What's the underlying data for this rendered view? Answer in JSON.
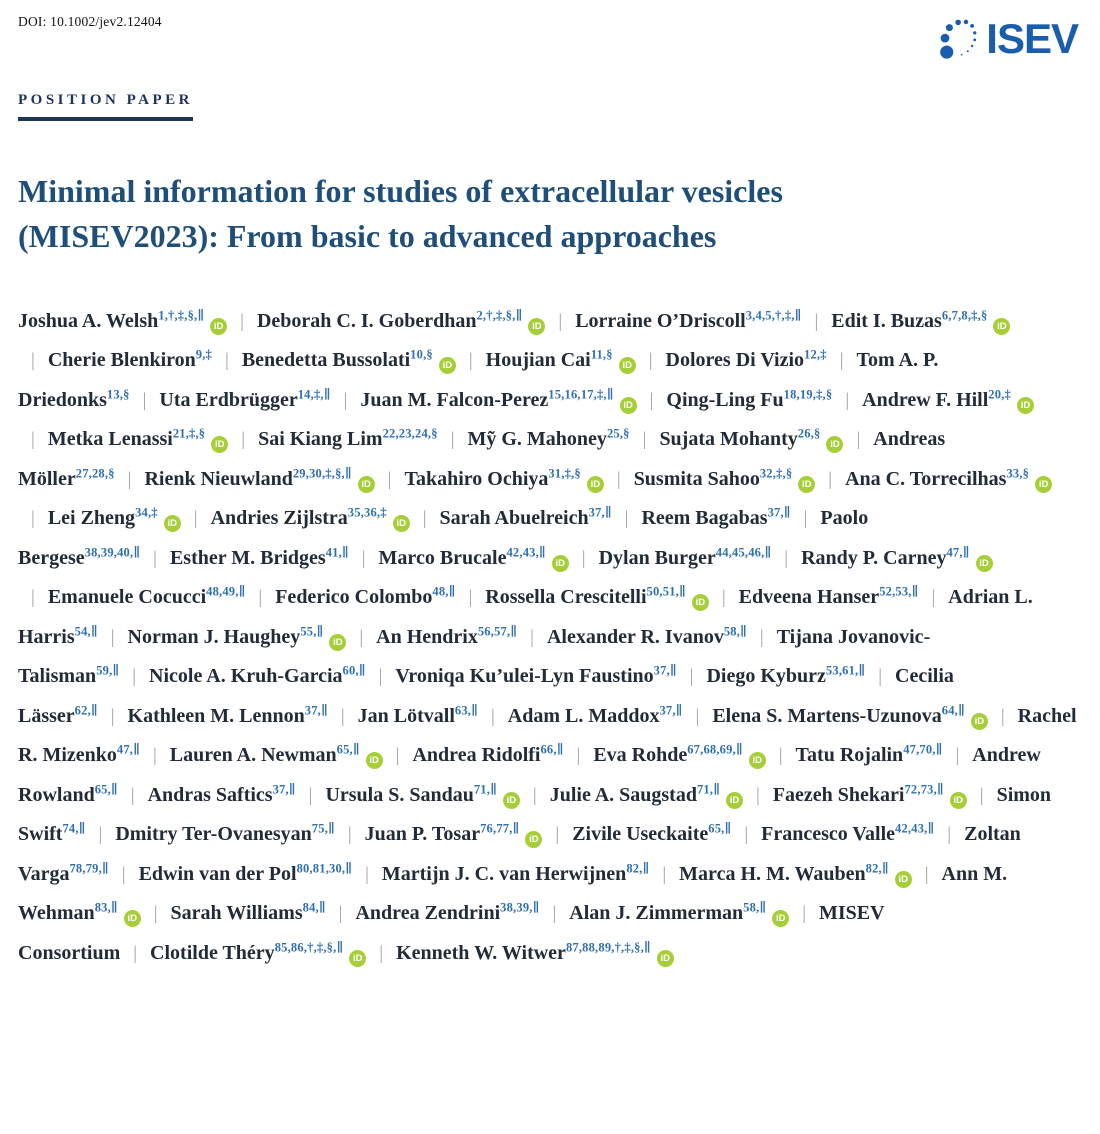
{
  "header": {
    "doi": "DOI: 10.1002/jev2.12404",
    "article_type": "POSITION PAPER",
    "logo_text": "ISEV"
  },
  "title": {
    "line1": "Minimal information for studies of extracellular vesicles",
    "line2": "(MISEV2023): From basic to advanced approaches",
    "full": "Minimal information for studies of extracellular vesicles (MISEV2023): From basic to advanced approaches"
  },
  "colors": {
    "logo_blue": "#1A5DAD",
    "title_blue": "#1F4E79",
    "article_type_navy": "#1C3557",
    "superscript_blue": "#2E6FAE",
    "orcid_green": "#A6CE39",
    "separator_gray": "#9ca3ad"
  },
  "icons": {
    "orcid_label": "iD",
    "isev_mark": "dotted-vesicle-icon"
  },
  "authors": [
    {
      "name": "Joshua A. Welsh",
      "sup": "1,†,‡,§,∥",
      "orcid": true
    },
    {
      "name": "Deborah C. I. Goberdhan",
      "sup": "2,†,‡,§,∥",
      "orcid": true
    },
    {
      "name": "Lorraine O’Driscoll",
      "sup": "3,4,5,†,‡,∥",
      "orcid": false
    },
    {
      "name": "Edit I. Buzas",
      "sup": "6,7,8,‡,§",
      "orcid": true
    },
    {
      "name": "Cherie Blenkiron",
      "sup": "9,‡",
      "orcid": false
    },
    {
      "name": "Benedetta Bussolati",
      "sup": "10,§",
      "orcid": true
    },
    {
      "name": "Houjian Cai",
      "sup": "11,§",
      "orcid": true
    },
    {
      "name": "Dolores Di Vizio",
      "sup": "12,‡",
      "orcid": false
    },
    {
      "name": "Tom A. P. Driedonks",
      "sup": "13,§",
      "orcid": false
    },
    {
      "name": "Uta Erdbrügger",
      "sup": "14,‡,∥",
      "orcid": false
    },
    {
      "name": "Juan M. Falcon-Perez",
      "sup": "15,16,17,‡,∥",
      "orcid": true
    },
    {
      "name": "Qing-Ling Fu",
      "sup": "18,19,‡,§",
      "orcid": false
    },
    {
      "name": "Andrew F. Hill",
      "sup": "20,‡",
      "orcid": true
    },
    {
      "name": "Metka Lenassi",
      "sup": "21,‡,§",
      "orcid": true
    },
    {
      "name": "Sai Kiang Lim",
      "sup": "22,23,24,§",
      "orcid": false
    },
    {
      "name": "Mỹ G. Mahoney",
      "sup": "25,§",
      "orcid": false
    },
    {
      "name": "Sujata Mohanty",
      "sup": "26,§",
      "orcid": true
    },
    {
      "name": "Andreas Möller",
      "sup": "27,28,§",
      "orcid": false
    },
    {
      "name": "Rienk Nieuwland",
      "sup": "29,30,‡,§,∥",
      "orcid": true
    },
    {
      "name": "Takahiro Ochiya",
      "sup": "31,‡,§",
      "orcid": true
    },
    {
      "name": "Susmita Sahoo",
      "sup": "32,‡,§",
      "orcid": true
    },
    {
      "name": "Ana C. Torrecilhas",
      "sup": "33,§",
      "orcid": true
    },
    {
      "name": "Lei Zheng",
      "sup": "34,‡",
      "orcid": true
    },
    {
      "name": "Andries Zijlstra",
      "sup": "35,36,‡",
      "orcid": true
    },
    {
      "name": "Sarah Abuelreich",
      "sup": "37,∥",
      "orcid": false
    },
    {
      "name": "Reem Bagabas",
      "sup": "37,∥",
      "orcid": false
    },
    {
      "name": "Paolo Bergese",
      "sup": "38,39,40,∥",
      "orcid": false
    },
    {
      "name": "Esther M. Bridges",
      "sup": "41,∥",
      "orcid": false
    },
    {
      "name": "Marco Brucale",
      "sup": "42,43,∥",
      "orcid": true
    },
    {
      "name": "Dylan Burger",
      "sup": "44,45,46,∥",
      "orcid": false
    },
    {
      "name": "Randy P. Carney",
      "sup": "47,∥",
      "orcid": true
    },
    {
      "name": "Emanuele Cocucci",
      "sup": "48,49,∥",
      "orcid": false
    },
    {
      "name": "Federico Colombo",
      "sup": "48,∥",
      "orcid": false
    },
    {
      "name": "Rossella Crescitelli",
      "sup": "50,51,∥",
      "orcid": true
    },
    {
      "name": "Edveena Hanser",
      "sup": "52,53,∥",
      "orcid": false
    },
    {
      "name": "Adrian L. Harris",
      "sup": "54,∥",
      "orcid": false
    },
    {
      "name": "Norman J. Haughey",
      "sup": "55,∥",
      "orcid": true
    },
    {
      "name": "An Hendrix",
      "sup": "56,57,∥",
      "orcid": false
    },
    {
      "name": "Alexander R. Ivanov",
      "sup": "58,∥",
      "orcid": false
    },
    {
      "name": "Tijana Jovanovic-Talisman",
      "sup": "59,∥",
      "orcid": false
    },
    {
      "name": "Nicole A. Kruh-Garcia",
      "sup": "60,∥",
      "orcid": false
    },
    {
      "name": "Vroniqa Ku’ulei-Lyn Faustino",
      "sup": "37,∥",
      "orcid": false
    },
    {
      "name": "Diego Kyburz",
      "sup": "53,61,∥",
      "orcid": false
    },
    {
      "name": "Cecilia Lässer",
      "sup": "62,∥",
      "orcid": false
    },
    {
      "name": "Kathleen M. Lennon",
      "sup": "37,∥",
      "orcid": false
    },
    {
      "name": "Jan Lötvall",
      "sup": "63,∥",
      "orcid": false
    },
    {
      "name": "Adam L. Maddox",
      "sup": "37,∥",
      "orcid": false
    },
    {
      "name": "Elena S. Martens-Uzunova",
      "sup": "64,∥",
      "orcid": true
    },
    {
      "name": "Rachel R. Mizenko",
      "sup": "47,∥",
      "orcid": false
    },
    {
      "name": "Lauren A. Newman",
      "sup": "65,∥",
      "orcid": true
    },
    {
      "name": "Andrea Ridolfi",
      "sup": "66,∥",
      "orcid": false
    },
    {
      "name": "Eva Rohde",
      "sup": "67,68,69,∥",
      "orcid": true
    },
    {
      "name": "Tatu Rojalin",
      "sup": "47,70,∥",
      "orcid": false
    },
    {
      "name": "Andrew Rowland",
      "sup": "65,∥",
      "orcid": false
    },
    {
      "name": "Andras Saftics",
      "sup": "37,∥",
      "orcid": false
    },
    {
      "name": "Ursula S. Sandau",
      "sup": "71,∥",
      "orcid": true
    },
    {
      "name": "Julie A. Saugstad",
      "sup": "71,∥",
      "orcid": true
    },
    {
      "name": "Faezeh Shekari",
      "sup": "72,73,∥",
      "orcid": true
    },
    {
      "name": "Simon Swift",
      "sup": "74,∥",
      "orcid": false
    },
    {
      "name": "Dmitry Ter-Ovanesyan",
      "sup": "75,∥",
      "orcid": false
    },
    {
      "name": "Juan P. Tosar",
      "sup": "76,77,∥",
      "orcid": true
    },
    {
      "name": "Zivile Useckaite",
      "sup": "65,∥",
      "orcid": false
    },
    {
      "name": "Francesco Valle",
      "sup": "42,43,∥",
      "orcid": false
    },
    {
      "name": "Zoltan Varga",
      "sup": "78,79,∥",
      "orcid": false
    },
    {
      "name": "Edwin van der Pol",
      "sup": "80,81,30,∥",
      "orcid": false
    },
    {
      "name": "Martijn J. C. van Herwijnen",
      "sup": "82,∥",
      "orcid": false
    },
    {
      "name": "Marca H. M. Wauben",
      "sup": "82,∥",
      "orcid": true
    },
    {
      "name": "Ann M. Wehman",
      "sup": "83,∥",
      "orcid": true
    },
    {
      "name": "Sarah Williams",
      "sup": "84,∥",
      "orcid": false
    },
    {
      "name": "Andrea Zendrini",
      "sup": "38,39,∥",
      "orcid": false
    },
    {
      "name": "Alan J. Zimmerman",
      "sup": "58,∥",
      "orcid": true
    },
    {
      "name": "MISEV Consortium",
      "sup": "",
      "orcid": false
    },
    {
      "name": "Clotilde Théry",
      "sup": "85,86,†,‡,§,∥",
      "orcid": true
    },
    {
      "name": "Kenneth W. Witwer",
      "sup": "87,88,89,†,‡,§,∥",
      "orcid": true
    }
  ]
}
